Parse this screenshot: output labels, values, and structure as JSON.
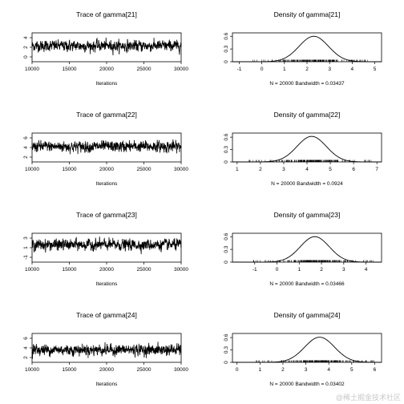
{
  "watermark": "@稀土掘金技术社区",
  "chart_data": [
    {
      "type": "line",
      "title": "Trace of gamma[21]",
      "xlabel": "Iterations",
      "x_ticks": [
        10000,
        15000,
        20000,
        25000,
        30000
      ],
      "y_ticks": [
        0,
        2,
        4
      ],
      "xlim": [
        10000,
        30000
      ],
      "ylim": [
        -1,
        5
      ],
      "series": [
        {
          "x_range": [
            10001,
            30000
          ],
          "mean": 2.3,
          "sd": 0.55
        }
      ]
    },
    {
      "type": "area",
      "title": "Density of gamma[21]",
      "xlabel": "N = 20000   Bandwidth = 0.03437",
      "x_ticks": [
        -1,
        0,
        1,
        2,
        3,
        4,
        5
      ],
      "y_ticks": [
        0.0,
        0.3,
        0.6
      ],
      "xlim": [
        -1.3,
        5.3
      ],
      "ylim": [
        0,
        0.68
      ],
      "series": [
        {
          "mean": 2.3,
          "sd": 0.65,
          "peak": 0.6,
          "rug_range": [
            -0.5,
            5.0
          ]
        }
      ]
    },
    {
      "type": "line",
      "title": "Trace of gamma[22]",
      "xlabel": "Iterations",
      "x_ticks": [
        10000,
        15000,
        20000,
        25000,
        30000
      ],
      "y_ticks": [
        2,
        4,
        6
      ],
      "xlim": [
        10000,
        30000
      ],
      "ylim": [
        1,
        7
      ],
      "series": [
        {
          "x_range": [
            10001,
            30000
          ],
          "mean": 4.2,
          "sd": 0.55
        }
      ]
    },
    {
      "type": "area",
      "title": "Density of gamma[22]",
      "xlabel": "N = 20000   Bandwidth = 0.0924",
      "x_ticks": [
        1,
        2,
        3,
        4,
        5,
        6,
        7
      ],
      "y_ticks": [
        0.0,
        0.3,
        0.6
      ],
      "xlim": [
        0.8,
        7.2
      ],
      "ylim": [
        0,
        0.7
      ],
      "series": [
        {
          "mean": 4.2,
          "sd": 0.63,
          "peak": 0.62,
          "rug_range": [
            1.5,
            6.9
          ]
        }
      ]
    },
    {
      "type": "line",
      "title": "Trace of gamma[23]",
      "xlabel": "Iterations",
      "x_ticks": [
        10000,
        15000,
        20000,
        25000,
        30000
      ],
      "y_ticks": [
        -1,
        1,
        3
      ],
      "xlim": [
        10000,
        30000
      ],
      "ylim": [
        -2,
        4
      ],
      "series": [
        {
          "x_range": [
            10001,
            30000
          ],
          "mean": 1.6,
          "sd": 0.55
        }
      ]
    },
    {
      "type": "area",
      "title": "Density of gamma[23]",
      "xlabel": "N = 20000   Bandwidth = 0.03466",
      "x_ticks": [
        -1,
        0,
        1,
        2,
        3,
        4
      ],
      "y_ticks": [
        0.0,
        0.3,
        0.6
      ],
      "xlim": [
        -2,
        4.7
      ],
      "ylim": [
        0,
        0.68
      ],
      "series": [
        {
          "mean": 1.7,
          "sd": 0.65,
          "peak": 0.6,
          "rug_range": [
            -1.2,
            4.4
          ]
        }
      ]
    },
    {
      "type": "line",
      "title": "Trace of gamma[24]",
      "xlabel": "Iterations",
      "x_ticks": [
        10000,
        15000,
        20000,
        25000,
        30000
      ],
      "y_ticks": [
        2,
        4,
        6
      ],
      "xlim": [
        10000,
        30000
      ],
      "ylim": [
        1,
        7
      ],
      "series": [
        {
          "x_range": [
            10001,
            30000
          ],
          "mean": 3.6,
          "sd": 0.55
        }
      ]
    },
    {
      "type": "area",
      "title": "Density of gamma[24]",
      "xlabel": "N = 20000   Bandwidth = 0.03402",
      "x_ticks": [
        0,
        1,
        2,
        3,
        4,
        5,
        6
      ],
      "y_ticks": [
        0.0,
        0.3,
        0.6
      ],
      "xlim": [
        -0.2,
        6.3
      ],
      "ylim": [
        0,
        0.7
      ],
      "series": [
        {
          "mean": 3.6,
          "sd": 0.65,
          "peak": 0.61,
          "rug_range": [
            0.8,
            6.0
          ]
        }
      ]
    }
  ]
}
